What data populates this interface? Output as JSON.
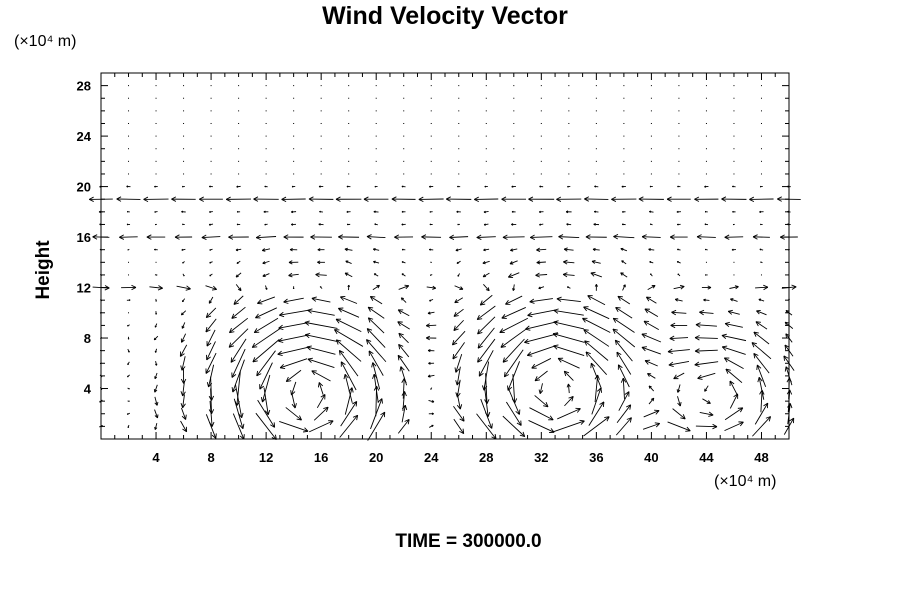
{
  "chart_data": {
    "type": "vector-field",
    "title": "Wind Velocity Vector",
    "xlabel": "",
    "ylabel": "Height",
    "x_unit": "(×10⁴ m)",
    "y_unit": "(×10⁴ m)",
    "xlim": [
      0,
      50
    ],
    "ylim": [
      0,
      29
    ],
    "x_ticks": [
      4,
      8,
      12,
      16,
      20,
      24,
      28,
      32,
      36,
      40,
      44,
      48
    ],
    "y_ticks": [
      4,
      8,
      12,
      16,
      20,
      24,
      28
    ],
    "time_label": "TIME = 300000.0",
    "grid": false,
    "vectors": {
      "x_spacing": 2,
      "y_spacing": 1,
      "features": [
        {
          "kind": "vortex",
          "cx": 15,
          "cy": 3.5,
          "radius": 4.5,
          "strength": 3,
          "direction": "ccw"
        },
        {
          "kind": "vortex",
          "cx": 33,
          "cy": 4,
          "radius": 4.5,
          "strength": 3,
          "direction": "ccw"
        },
        {
          "kind": "vortex",
          "cx": 45,
          "cy": 3.5,
          "radius": 3.5,
          "strength": 2.2,
          "direction": "ccw"
        },
        {
          "kind": "jet",
          "y": 19,
          "u": -2.2
        },
        {
          "kind": "jet",
          "y": 16,
          "u": -1.6
        },
        {
          "kind": "jet",
          "y": 12,
          "u": 1.4
        }
      ]
    }
  }
}
